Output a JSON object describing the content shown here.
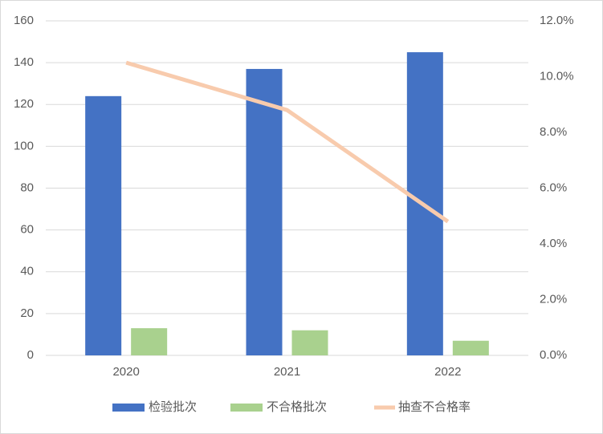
{
  "chart_data": {
    "type": "bar-line",
    "categories": [
      "2020",
      "2021",
      "2022"
    ],
    "series": [
      {
        "name": "检验批次",
        "color": "#4472c4",
        "type": "bar",
        "values": [
          124,
          137,
          145
        ]
      },
      {
        "name": "不合格批次",
        "color": "#a9d18e",
        "type": "bar",
        "values": [
          13,
          12,
          7
        ]
      },
      {
        "name": "抽查不合格率",
        "color": "#f8cbad",
        "type": "line",
        "axis": "y2",
        "values": [
          10.5,
          8.8,
          4.8
        ]
      }
    ],
    "ylim": [
      0,
      160
    ],
    "yticks": [
      0,
      20,
      40,
      60,
      80,
      100,
      120,
      140,
      160
    ],
    "y2lim": [
      0,
      12
    ],
    "y2ticks": [
      {
        "value": 0,
        "label": "0.0%"
      },
      {
        "value": 2,
        "label": "2.0%"
      },
      {
        "value": 4,
        "label": "4.0%"
      },
      {
        "value": 6,
        "label": "6.0%"
      },
      {
        "value": 8,
        "label": "8.0%"
      },
      {
        "value": 10,
        "label": "10.0%"
      },
      {
        "value": 12,
        "label": "12.0%"
      }
    ],
    "grid": true,
    "legend": "bottom"
  }
}
